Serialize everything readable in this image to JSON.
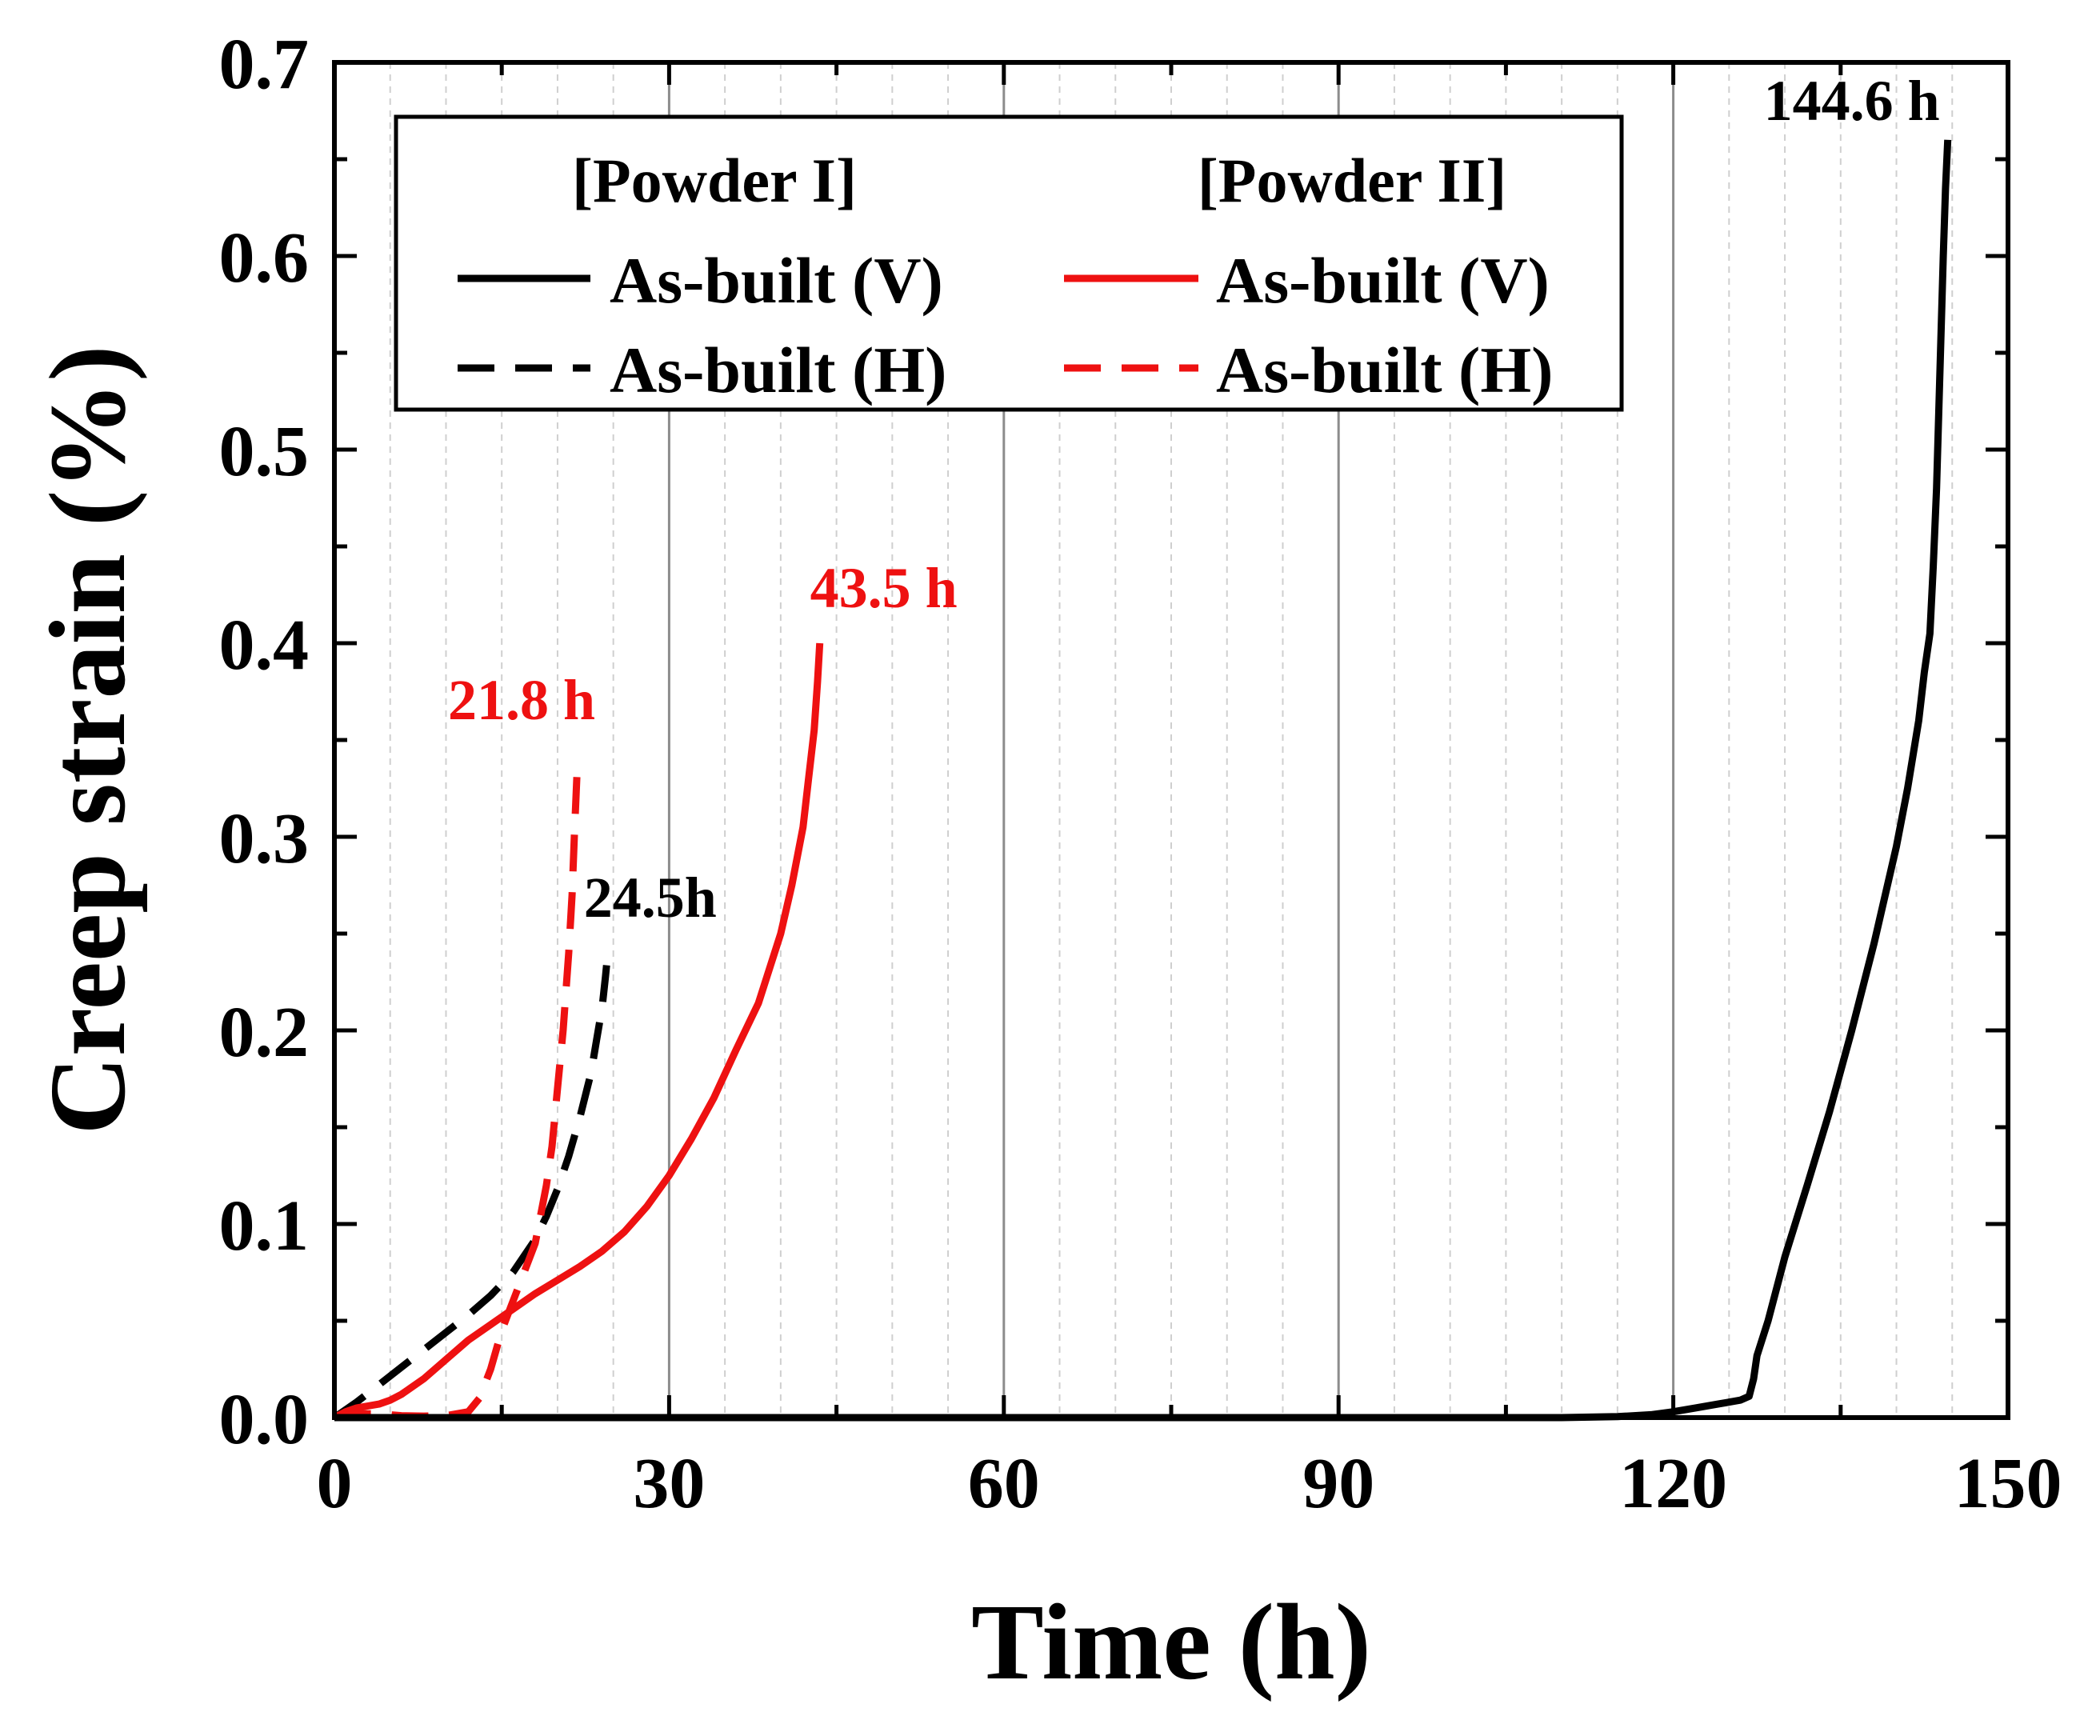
{
  "chart_data": {
    "type": "line",
    "xlabel": "Time (h)",
    "ylabel": "Creep strain (%)",
    "xlim": [
      0,
      150
    ],
    "ylim": [
      0,
      0.7
    ],
    "xticks": [
      0,
      30,
      60,
      90,
      120,
      150
    ],
    "yticks": [
      0.0,
      0.1,
      0.2,
      0.3,
      0.4,
      0.5,
      0.6,
      0.7
    ],
    "xtick_labels": [
      "0",
      "30",
      "60",
      "90",
      "120",
      "150"
    ],
    "ytick_labels": [
      "0.0",
      "0.1",
      "0.2",
      "0.3",
      "0.4",
      "0.5",
      "0.6",
      "0.7"
    ],
    "grid": "vertical",
    "legend": {
      "placement": "top-left",
      "group1_title": "[Powder I]",
      "group2_title": "[Powder II]"
    },
    "series": [
      {
        "id": "p1v",
        "name": "As-built (V)",
        "group": "Powder I",
        "color": "#000000",
        "style": "solid",
        "x": [
          0,
          20,
          40,
          60,
          80,
          100,
          110,
          115,
          118,
          120,
          122,
          124,
          126,
          126.8,
          127.2,
          127.5,
          128.5,
          130,
          132,
          134,
          136,
          138,
          140,
          141,
          142,
          142.5,
          143,
          143.3,
          143.6,
          143.8,
          144,
          144.2,
          144.4,
          144.6
        ],
        "y": [
          0,
          0,
          0,
          0,
          0,
          0,
          0,
          0.0005,
          0.0015,
          0.003,
          0.005,
          0.007,
          0.009,
          0.011,
          0.02,
          0.032,
          0.05,
          0.083,
          0.12,
          0.158,
          0.2,
          0.245,
          0.295,
          0.325,
          0.36,
          0.385,
          0.405,
          0.44,
          0.48,
          0.52,
          0.56,
          0.6,
          0.635,
          0.66
        ]
      },
      {
        "id": "p1h",
        "name": "As-built (H)",
        "group": "Powder I",
        "color": "#000000",
        "style": "dashed",
        "x": [
          0,
          2,
          4,
          6,
          8,
          10,
          12,
          14,
          16,
          18,
          19,
          20,
          21,
          22,
          23,
          23.5,
          24,
          24.3,
          24.5
        ],
        "y": [
          0,
          0.008,
          0.017,
          0.026,
          0.035,
          0.044,
          0.053,
          0.063,
          0.075,
          0.092,
          0.104,
          0.118,
          0.135,
          0.155,
          0.178,
          0.195,
          0.212,
          0.228,
          0.24
        ]
      },
      {
        "id": "p2v",
        "name": "As-built (V)",
        "group": "Powder II",
        "color": "#ee1111",
        "style": "solid",
        "x": [
          0,
          1,
          2,
          3,
          4,
          5,
          6,
          8,
          10,
          12,
          14,
          16,
          18,
          20,
          22,
          24,
          26,
          28,
          30,
          32,
          34,
          36,
          38,
          40,
          41,
          42,
          42.5,
          43,
          43.3,
          43.5
        ],
        "y": [
          0,
          0.003,
          0.005,
          0.006,
          0.007,
          0.009,
          0.012,
          0.02,
          0.03,
          0.04,
          0.048,
          0.056,
          0.064,
          0.071,
          0.078,
          0.086,
          0.096,
          0.109,
          0.125,
          0.144,
          0.165,
          0.19,
          0.214,
          0.25,
          0.275,
          0.305,
          0.33,
          0.355,
          0.38,
          0.4
        ]
      },
      {
        "id": "p2h",
        "name": "As-built (H)",
        "group": "Powder II",
        "color": "#ee1111",
        "style": "dashed",
        "x": [
          0,
          2,
          4,
          6,
          8,
          10,
          12,
          13,
          14,
          15,
          16,
          17,
          18,
          19,
          19.5,
          20,
          20.5,
          21,
          21.3,
          21.5,
          21.8
        ],
        "y": [
          0,
          0.002,
          0.002,
          0.001,
          0.0008,
          0.001,
          0.003,
          0.01,
          0.025,
          0.045,
          0.06,
          0.075,
          0.09,
          0.12,
          0.14,
          0.17,
          0.2,
          0.24,
          0.27,
          0.3,
          0.34
        ]
      }
    ],
    "annotations": [
      {
        "text": "144.6 h",
        "x": 144.6,
        "y": 0.66,
        "color": "#000000"
      },
      {
        "text": "43.5 h",
        "x": 43.5,
        "y": 0.4,
        "color": "#ee1111"
      },
      {
        "text": "21.8 h",
        "x": 21.8,
        "y": 0.34,
        "color": "#ee1111"
      },
      {
        "text": "24.5h",
        "x": 24.5,
        "y": 0.24,
        "color": "#000000"
      }
    ]
  }
}
